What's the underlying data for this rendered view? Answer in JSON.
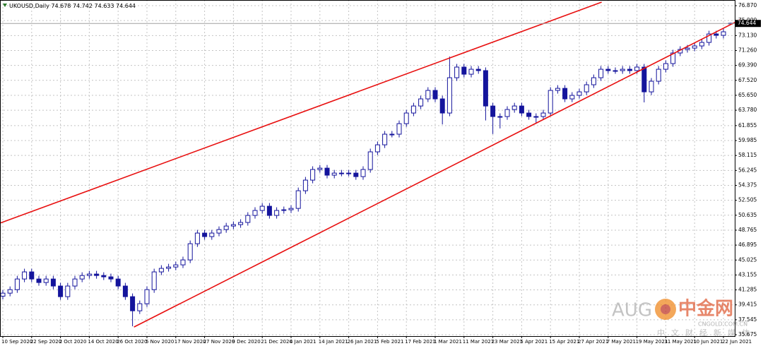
{
  "chart_data": {
    "type": "candlestick",
    "title": "UKOUSD,Daily",
    "color": "#14149c",
    "categories": [
      "10 Sep 2020",
      null,
      null,
      null,
      "22 Sep 2020",
      null,
      null,
      null,
      "2 Oct 2020",
      null,
      null,
      null,
      "14 Oct 2020",
      null,
      null,
      null,
      "26 Oct 2020",
      null,
      null,
      null,
      "5 Nov 2020",
      null,
      null,
      null,
      "17 Nov 2020",
      null,
      null,
      null,
      "27 Nov 2020",
      null,
      null,
      null,
      "9 Dec 2020",
      null,
      null,
      null,
      "21 Dec 2020",
      null,
      null,
      null,
      "4 Jan 2021",
      null,
      null,
      null,
      "14 Jan 2021",
      null,
      null,
      null,
      "26 Jan 2021",
      null,
      null,
      null,
      "5 Feb 2021",
      null,
      null,
      null,
      "17 Feb 2021",
      null,
      null,
      null,
      "1 Mar 2021",
      null,
      null,
      null,
      "11 Mar 2021",
      null,
      null,
      null,
      "23 Mar 2021",
      null,
      null,
      null,
      "5 Apr 2021",
      null,
      null,
      null,
      "15 Apr 2021",
      null,
      null,
      null,
      "27 Apr 2021",
      null,
      null,
      null,
      "7 May 2021",
      null,
      null,
      null,
      "19 May 2021",
      null,
      null,
      null,
      "31 May 2021",
      null,
      null,
      null,
      "10 Jun 2021",
      null,
      null,
      null,
      "22 Jun 2021",
      null
    ],
    "open": [
      40.5,
      40.88,
      41.32,
      42.65,
      43.54,
      42.65,
      42.21,
      42.65,
      41.77,
      40.44,
      41.77,
      42.65,
      43.09,
      43.27,
      43.09,
      42.92,
      42.65,
      41.77,
      40.44,
      38.67,
      39.56,
      41.32,
      43.54,
      43.98,
      44.15,
      44.42,
      45.04,
      47.07,
      48.4,
      47.96,
      48.4,
      48.84,
      49.28,
      49.46,
      49.73,
      50.61,
      51.23,
      51.76,
      50.61,
      51.23,
      51.32,
      51.49,
      53.7,
      55.03,
      56.36,
      56.53,
      55.65,
      55.91,
      55.91,
      55.91,
      55.47,
      56.36,
      58.57,
      59.45,
      60.78,
      60.78,
      62.1,
      63.43,
      64.31,
      65.2,
      66.26,
      65.2,
      63.43,
      67.85,
      69.18,
      68.29,
      68.91,
      68.74,
      64.31,
      62.99,
      62.99,
      63.87,
      64.31,
      63.43,
      62.99,
      62.99,
      63.43,
      66.26,
      66.52,
      65.2,
      65.64,
      66.08,
      66.97,
      67.85,
      68.91,
      68.74,
      68.74,
      68.91,
      68.74,
      69.18,
      66.08,
      67.41,
      68.91,
      69.62,
      70.95,
      71.39,
      71.56,
      71.83,
      72.27,
      73.33,
      73.16,
      74.678
    ],
    "high": [
      41.28,
      41.72,
      43.05,
      43.94,
      43.94,
      43.05,
      43.05,
      43.05,
      42.17,
      42.17,
      43.05,
      43.49,
      43.67,
      43.67,
      43.49,
      43.32,
      43.05,
      42.17,
      40.84,
      39.96,
      41.72,
      43.94,
      44.38,
      44.55,
      44.82,
      45.44,
      47.47,
      48.8,
      48.8,
      48.8,
      49.24,
      49.68,
      49.86,
      50.13,
      51.01,
      51.63,
      52.16,
      52.16,
      51.63,
      51.72,
      51.89,
      54.1,
      55.43,
      56.76,
      56.93,
      56.93,
      56.31,
      56.31,
      56.31,
      56.31,
      56.76,
      58.97,
      59.85,
      61.18,
      61.18,
      62.5,
      63.83,
      64.71,
      65.6,
      66.66,
      66.66,
      65.6,
      70.5,
      69.58,
      69.58,
      69.31,
      69.31,
      69.14,
      64.71,
      63.39,
      64.27,
      64.71,
      64.71,
      63.83,
      63.39,
      63.83,
      66.66,
      66.92,
      66.92,
      66.04,
      66.48,
      67.37,
      68.25,
      69.31,
      69.31,
      69.14,
      69.31,
      69.31,
      69.58,
      69.58,
      67.81,
      69.31,
      70.02,
      71.35,
      71.79,
      71.96,
      72.23,
      72.67,
      73.73,
      73.73,
      74.0,
      74.742
    ],
    "low": [
      40.1,
      40.48,
      40.92,
      42.25,
      42.25,
      41.81,
      41.81,
      41.37,
      40.04,
      40.04,
      41.37,
      42.25,
      42.69,
      42.69,
      42.52,
      42.25,
      41.37,
      40.04,
      36.73,
      38.27,
      39.16,
      40.92,
      43.14,
      43.58,
      43.75,
      44.02,
      44.64,
      46.67,
      47.56,
      47.56,
      48.0,
      48.44,
      48.88,
      49.06,
      49.33,
      50.21,
      50.83,
      50.21,
      50.21,
      50.83,
      50.92,
      51.09,
      53.3,
      54.63,
      55.96,
      55.25,
      55.25,
      55.51,
      55.51,
      55.07,
      55.07,
      55.96,
      58.17,
      59.05,
      60.38,
      60.38,
      61.7,
      63.03,
      63.91,
      64.8,
      64.8,
      62.0,
      63.03,
      67.45,
      67.89,
      67.89,
      68.34,
      62.5,
      60.8,
      61.5,
      62.59,
      63.47,
      63.03,
      62.59,
      62.2,
      62.59,
      63.03,
      65.86,
      64.8,
      64.8,
      65.24,
      65.68,
      66.57,
      67.45,
      68.34,
      68.34,
      68.34,
      68.34,
      68.34,
      64.76,
      65.68,
      67.01,
      68.51,
      69.22,
      70.55,
      70.99,
      71.16,
      71.43,
      71.87,
      72.76,
      72.76,
      74.633
    ],
    "close": [
      40.88,
      41.32,
      42.65,
      43.54,
      42.65,
      42.21,
      42.65,
      41.77,
      40.44,
      41.77,
      42.65,
      43.09,
      43.27,
      43.09,
      42.92,
      42.65,
      41.77,
      40.44,
      38.67,
      39.56,
      41.32,
      43.54,
      43.98,
      44.15,
      44.42,
      45.04,
      47.07,
      48.4,
      47.96,
      48.4,
      48.84,
      49.28,
      49.46,
      49.73,
      50.61,
      51.23,
      51.76,
      50.61,
      51.23,
      51.32,
      51.49,
      53.7,
      55.03,
      56.36,
      56.53,
      55.65,
      55.91,
      55.91,
      55.91,
      55.47,
      56.36,
      58.57,
      59.45,
      60.78,
      60.78,
      62.1,
      63.43,
      64.31,
      65.2,
      66.26,
      65.2,
      63.43,
      67.85,
      69.18,
      68.29,
      68.91,
      68.74,
      64.31,
      62.99,
      62.99,
      63.87,
      64.31,
      63.43,
      62.99,
      62.99,
      63.43,
      66.26,
      66.52,
      65.2,
      65.64,
      66.08,
      66.97,
      67.85,
      68.91,
      68.74,
      68.74,
      68.91,
      68.74,
      69.18,
      66.08,
      67.41,
      68.91,
      69.62,
      70.95,
      71.39,
      71.56,
      71.83,
      72.27,
      73.33,
      73.16,
      73.6,
      74.644
    ],
    "trendlines": [
      {
        "color": "#e81010",
        "x": [
          -0.4,
          83.1
        ],
        "y": [
          49.64,
          77.31
        ]
      },
      {
        "color": "#e81010",
        "x": [
          18.2,
          102.3
        ],
        "y": [
          36.64,
          75.1
        ]
      }
    ],
    "ylim": [
      35.5,
      77.58
    ],
    "yticks": [
      {
        "value": 76.87,
        "label": "76.870"
      },
      {
        "value": 75,
        "label": "75.000"
      },
      {
        "value": 73.13,
        "label": "73.130"
      },
      {
        "value": 71.26,
        "label": "71.260"
      },
      {
        "value": 69.39,
        "label": "69.390"
      },
      {
        "value": 67.52,
        "label": "67.520"
      },
      {
        "value": 65.65,
        "label": "65.650"
      },
      {
        "value": 63.78,
        "label": "63.780"
      },
      61.855,
      59.985,
      58.115,
      56.245,
      54.375,
      52.505,
      50.635,
      48.765,
      46.895,
      45.025,
      43.155,
      41.285,
      39.415,
      37.545,
      35.675
    ],
    "grid": true,
    "watermark": [
      "AUG",
      "中金网",
      "CNGOLD.COM.CN",
      "中文财经新媒体"
    ]
  }
}
